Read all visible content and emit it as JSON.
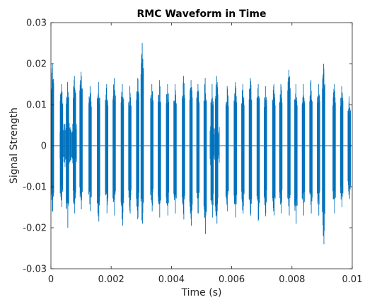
{
  "chart_data": {
    "type": "line",
    "title": "RMC Waveform in Time",
    "xlabel": "Time (s)",
    "ylabel": "Signal Strength",
    "xlim": [
      0,
      0.01
    ],
    "ylim": [
      -0.03,
      0.03
    ],
    "x_ticks": [
      "0",
      "0.002",
      "0.004",
      "0.006",
      "0.008",
      "0.01"
    ],
    "y_ticks": [
      "0.03",
      "0.02",
      "0.01",
      "0",
      "-0.01",
      "-0.02",
      "-0.03"
    ],
    "grid": false,
    "line_color": "#0072BD",
    "series": [
      {
        "bursts": [
          {
            "t": 5e-05,
            "top": 0.02,
            "bottom": -0.016
          },
          {
            "t": 0.00035,
            "top": 0.015,
            "bottom": -0.015
          },
          {
            "t": 0.00055,
            "top": 0.0155,
            "bottom": -0.02
          },
          {
            "t": 0.00078,
            "top": 0.017,
            "bottom": -0.0165
          },
          {
            "t": 0.001,
            "top": 0.018,
            "bottom": -0.0155
          },
          {
            "t": 0.0013,
            "top": 0.0145,
            "bottom": -0.016
          },
          {
            "t": 0.00158,
            "top": 0.0155,
            "bottom": -0.0185
          },
          {
            "t": 0.00185,
            "top": 0.015,
            "bottom": -0.0165
          },
          {
            "t": 0.0021,
            "top": 0.0165,
            "bottom": -0.017
          },
          {
            "t": 0.00237,
            "top": 0.015,
            "bottom": -0.0195
          },
          {
            "t": 0.00262,
            "top": 0.0145,
            "bottom": -0.0165
          },
          {
            "t": 0.00288,
            "top": 0.0165,
            "bottom": -0.0175
          },
          {
            "t": 0.00303,
            "top": 0.025,
            "bottom": -0.019
          },
          {
            "t": 0.00335,
            "top": 0.015,
            "bottom": -0.016
          },
          {
            "t": 0.0036,
            "top": 0.016,
            "bottom": -0.0175
          },
          {
            "t": 0.00387,
            "top": 0.015,
            "bottom": -0.017
          },
          {
            "t": 0.00412,
            "top": 0.015,
            "bottom": -0.0165
          },
          {
            "t": 0.0044,
            "top": 0.017,
            "bottom": -0.018
          },
          {
            "t": 0.00465,
            "top": 0.016,
            "bottom": -0.0195
          },
          {
            "t": 0.00488,
            "top": 0.015,
            "bottom": -0.0165
          },
          {
            "t": 0.00512,
            "top": 0.0165,
            "bottom": -0.0215
          },
          {
            "t": 0.00535,
            "top": 0.015,
            "bottom": -0.0175
          },
          {
            "t": 0.0055,
            "top": 0.017,
            "bottom": -0.019
          },
          {
            "t": 0.00585,
            "top": 0.0145,
            "bottom": -0.016
          },
          {
            "t": 0.00612,
            "top": 0.0155,
            "bottom": -0.0175
          },
          {
            "t": 0.00637,
            "top": 0.015,
            "bottom": -0.0165
          },
          {
            "t": 0.00662,
            "top": 0.0165,
            "bottom": -0.017
          },
          {
            "t": 0.00688,
            "top": 0.015,
            "bottom": -0.018
          },
          {
            "t": 0.00712,
            "top": 0.0145,
            "bottom": -0.0165
          },
          {
            "t": 0.0074,
            "top": 0.015,
            "bottom": -0.017
          },
          {
            "t": 0.00763,
            "top": 0.015,
            "bottom": -0.0165
          },
          {
            "t": 0.0079,
            "top": 0.0185,
            "bottom": -0.017
          },
          {
            "t": 0.00813,
            "top": 0.015,
            "bottom": -0.019
          },
          {
            "t": 0.00838,
            "top": 0.015,
            "bottom": -0.017
          },
          {
            "t": 0.00863,
            "top": 0.016,
            "bottom": -0.0165
          },
          {
            "t": 0.00888,
            "top": 0.015,
            "bottom": -0.017
          },
          {
            "t": 0.00905,
            "top": 0.02,
            "bottom": -0.024
          },
          {
            "t": 0.0094,
            "top": 0.015,
            "bottom": -0.0165
          },
          {
            "t": 0.00965,
            "top": 0.0145,
            "bottom": -0.015
          },
          {
            "t": 0.0099,
            "top": 0.012,
            "bottom": -0.013
          }
        ],
        "noise_regions": [
          {
            "t_start": 0.0003,
            "t_end": 0.00085,
            "amplitude": 0.0055
          },
          {
            "t_start": 0.00528,
            "t_end": 0.0056,
            "amplitude": 0.005
          }
        ]
      }
    ]
  }
}
